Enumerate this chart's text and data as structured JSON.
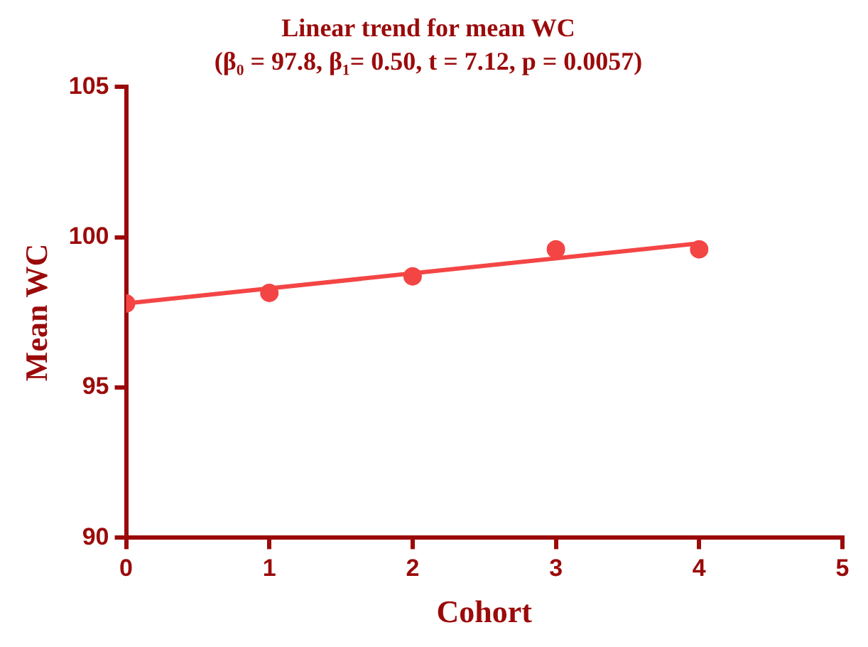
{
  "chart_data": {
    "type": "scatter",
    "title": "Linear trend for mean WC",
    "subtitle": "(β₀ = 97.8, β₁= 0.50, t = 7.12, p = 0.0057)",
    "xlabel": "Cohort",
    "ylabel": "Mean WC",
    "series": [
      {
        "type": "scatter",
        "color": "#f44545",
        "x": [
          0,
          1,
          2,
          3,
          4
        ],
        "values": [
          97.8,
          98.15,
          98.7,
          99.6,
          99.6
        ],
        "marker": "circle"
      },
      {
        "type": "line",
        "color": "#f44545",
        "x": [
          0,
          4
        ],
        "values": [
          97.8,
          99.8
        ],
        "marker": "none",
        "line_style": "solid"
      }
    ],
    "xlim": [
      0,
      5
    ],
    "xticks": [
      0,
      1,
      2,
      3,
      4,
      5
    ],
    "ylim": [
      90,
      105
    ],
    "yticks": [
      90,
      95,
      100,
      105
    ],
    "grid": false,
    "legend": false
  }
}
